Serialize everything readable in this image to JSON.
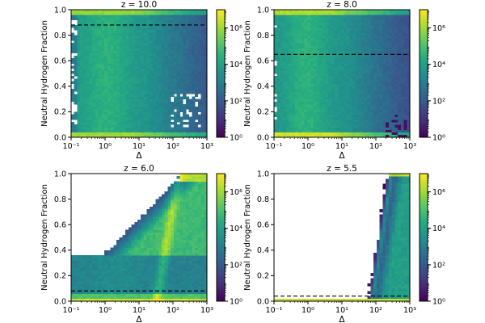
{
  "colormap": [
    "#440154",
    "#472c7a",
    "#3b518b",
    "#2c718e",
    "#21908d",
    "#27ad81",
    "#5cc863",
    "#aadc32",
    "#fde725"
  ],
  "chart_data": [
    {
      "type": "heatmap",
      "title": "z = 10.0",
      "xlabel": "Δ",
      "ylabel": "Neutral Hydrogen Fraction",
      "xscale": "log",
      "xlim": [
        0.1,
        1000
      ],
      "ylim": [
        0.0,
        1.0
      ],
      "xticks": [
        "10⁻¹",
        "10⁰",
        "10¹",
        "10²",
        "10³"
      ],
      "yticks": [
        "0.0",
        "0.2",
        "0.4",
        "0.6",
        "0.8",
        "1.0"
      ],
      "mean_line_y": 0.88,
      "distribution": "fully-filled",
      "colorbar": {
        "scale": "log",
        "range": [
          1,
          10000000
        ],
        "ticks": [
          "10⁰",
          "10²",
          "10⁴",
          "10⁶"
        ]
      }
    },
    {
      "type": "heatmap",
      "title": "z = 8.0",
      "xlabel": "Δ",
      "ylabel": "Neutral Hydrogen Fraction",
      "xscale": "log",
      "xlim": [
        0.1,
        1000
      ],
      "ylim": [
        0.0,
        1.0
      ],
      "xticks": [
        "10⁻¹",
        "10⁰",
        "10¹",
        "10²",
        "10³"
      ],
      "yticks": [
        "0.0",
        "0.2",
        "0.4",
        "0.6",
        "0.8",
        "1.0"
      ],
      "mean_line_y": 0.65,
      "distribution": "fully-filled",
      "colorbar": {
        "scale": "log",
        "range": [
          1,
          10000000
        ],
        "ticks": [
          "10⁰",
          "10²",
          "10⁴",
          "10⁶"
        ]
      }
    },
    {
      "type": "heatmap",
      "title": "z = 6.0",
      "xlabel": "Δ",
      "ylabel": "Neutral Hydrogen Fraction",
      "xscale": "log",
      "xlim": [
        0.1,
        1000
      ],
      "ylim": [
        0.0,
        1.0
      ],
      "xticks": [
        "10⁻¹",
        "10⁰",
        "10¹",
        "10²",
        "10³"
      ],
      "yticks": [
        "0.0",
        "0.2",
        "0.4",
        "0.6",
        "0.8",
        "1.0"
      ],
      "mean_line_y": 0.08,
      "distribution": "plateau-then-rising-edge",
      "plateau_y": 0.36,
      "rise_start_x": 0.9,
      "rise_end_x": 200,
      "colorbar": {
        "scale": "log",
        "range": [
          1,
          10000000
        ],
        "ticks": [
          "10⁰",
          "10²",
          "10⁴",
          "10⁶"
        ]
      }
    },
    {
      "type": "heatmap",
      "title": "z = 5.5",
      "xlabel": "Δ",
      "ylabel": "Neutral Hydrogen Fraction",
      "xscale": "log",
      "xlim": [
        0.1,
        1000
      ],
      "ylim": [
        0.0,
        1.0
      ],
      "xticks": [
        "10⁻¹",
        "10⁰",
        "10¹",
        "10²",
        "10³"
      ],
      "yticks": [
        "0.0",
        "0.2",
        "0.4",
        "0.6",
        "0.8",
        "1.0"
      ],
      "mean_line_y": 0.04,
      "distribution": "bottom-band-then-steep-edge",
      "rise_start_x": 60,
      "rise_end_x": 200,
      "colorbar": {
        "scale": "log",
        "range": [
          1,
          10000000
        ],
        "ticks": [
          "10⁰",
          "10²",
          "10⁴",
          "10⁶"
        ]
      }
    }
  ]
}
